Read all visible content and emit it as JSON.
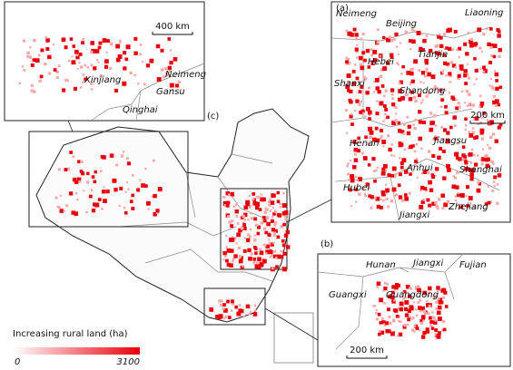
{
  "xinjiang_inset": {
    "places": [
      "Xinjiang",
      "Neimeng",
      "Gansu",
      "Qinghai"
    ],
    "scale": "400 km"
  },
  "panel_a": {
    "label": "(a)",
    "places": [
      "Neimeng",
      "Beijing",
      "Liaoning",
      "Tianjin",
      "Hebei",
      "Shanxi",
      "Shandong",
      "Henan",
      "Jiangsu",
      "Anhui",
      "Shanghai",
      "Hubei",
      "Jiangxi",
      "Zhejiang"
    ],
    "scale": "200 km"
  },
  "panel_b": {
    "label": "(b)",
    "places": [
      "Hunan",
      "Jiangxi",
      "Fujian",
      "Guangxi",
      "Guangdong"
    ],
    "scale": "200 km"
  },
  "main_map": {
    "label": "(c)"
  },
  "legend": {
    "title": "Increasing rural land (ha)",
    "min": 0,
    "max": 3100
  }
}
